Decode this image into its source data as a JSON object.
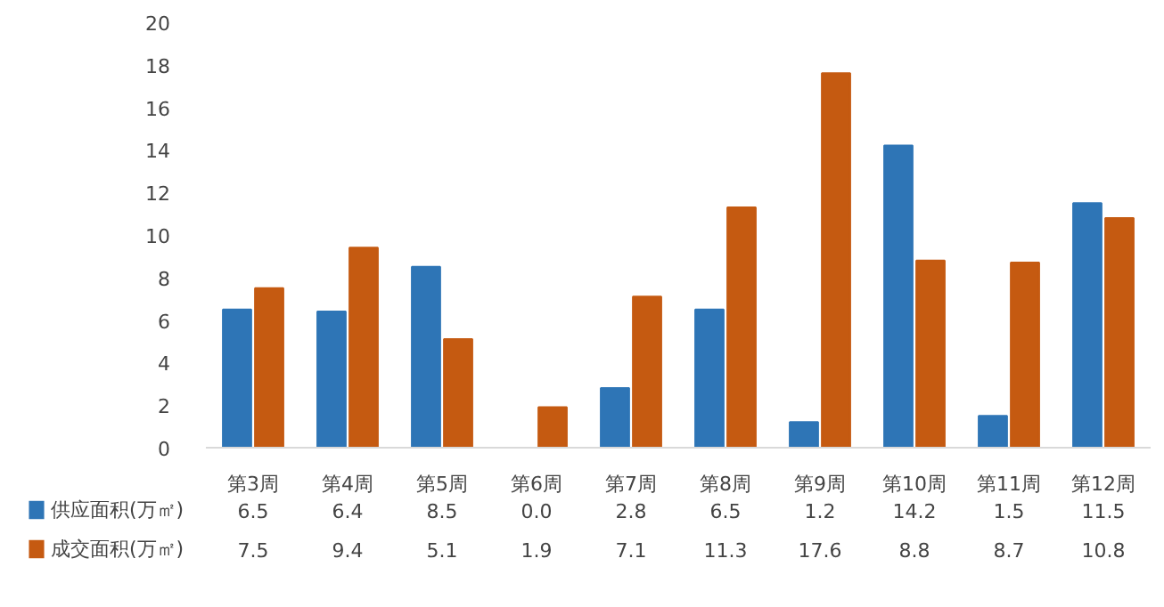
{
  "chart_data": {
    "type": "bar",
    "categories": [
      "第3周",
      "第4周",
      "第5周",
      "第6周",
      "第7周",
      "第8周",
      "第9周",
      "第10周",
      "第11周",
      "第12周"
    ],
    "series": [
      {
        "name": "供应面积(万㎡)",
        "color": "#2e75b6",
        "values": [
          6.5,
          6.4,
          8.5,
          0.0,
          2.8,
          6.5,
          1.2,
          14.2,
          1.5,
          11.5
        ],
        "value_labels": [
          "6.5",
          "6.4",
          "8.5",
          "0.0",
          "2.8",
          "6.5",
          "1.2",
          "14.2",
          "1.5",
          "11.5"
        ]
      },
      {
        "name": "成交面积(万㎡)",
        "color": "#c55a11",
        "values": [
          7.5,
          9.4,
          5.1,
          1.9,
          7.1,
          11.3,
          17.6,
          8.8,
          8.7,
          10.8
        ],
        "value_labels": [
          "7.5",
          "9.4",
          "5.1",
          "1.9",
          "7.1",
          "11.3",
          "17.6",
          "8.8",
          "8.7",
          "10.8"
        ]
      }
    ],
    "ylim": [
      0,
      20
    ],
    "yticks": [
      0,
      2,
      4,
      6,
      8,
      10,
      12,
      14,
      16,
      18,
      20
    ],
    "grid": false,
    "legend": "bottom"
  }
}
